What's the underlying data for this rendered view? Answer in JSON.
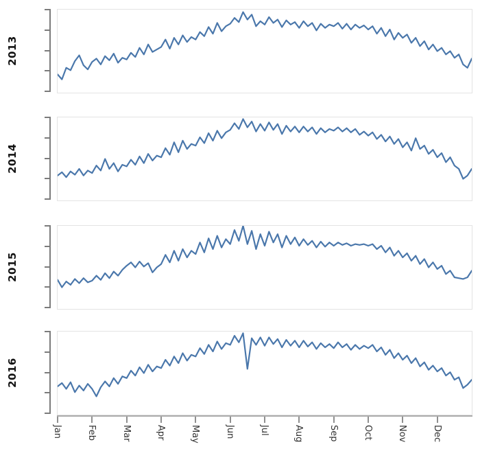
{
  "chart_data": {
    "type": "line",
    "layout": "faceted-small-multiples-shared-x",
    "title": "",
    "facet_labels": [
      "2013",
      "2014",
      "2015",
      "2016"
    ],
    "x_tick_labels": [
      "Jan",
      "Feb",
      "Mar",
      "Apr",
      "May",
      "Jun",
      "Jul",
      "Aug",
      "Sep",
      "Oct",
      "Nov",
      "Dec"
    ],
    "y_tick_count": 5,
    "y_tick_labels_visible": false,
    "value_scale": "normalized 0 (facet bottom) to 1 (facet top); y axis shows unlabeled ticks only",
    "series": [
      {
        "name": "2013",
        "values": [
          0.22,
          0.16,
          0.3,
          0.27,
          0.38,
          0.45,
          0.33,
          0.28,
          0.37,
          0.41,
          0.34,
          0.44,
          0.39,
          0.47,
          0.36,
          0.42,
          0.4,
          0.48,
          0.43,
          0.54,
          0.46,
          0.58,
          0.49,
          0.52,
          0.55,
          0.64,
          0.53,
          0.66,
          0.58,
          0.69,
          0.61,
          0.67,
          0.64,
          0.73,
          0.68,
          0.79,
          0.71,
          0.84,
          0.74,
          0.8,
          0.83,
          0.9,
          0.85,
          0.97,
          0.88,
          0.94,
          0.8,
          0.86,
          0.82,
          0.91,
          0.84,
          0.88,
          0.79,
          0.87,
          0.82,
          0.85,
          0.78,
          0.86,
          0.8,
          0.84,
          0.75,
          0.83,
          0.78,
          0.82,
          0.8,
          0.84,
          0.77,
          0.83,
          0.76,
          0.82,
          0.78,
          0.81,
          0.76,
          0.8,
          0.71,
          0.78,
          0.68,
          0.76,
          0.64,
          0.72,
          0.66,
          0.7,
          0.6,
          0.66,
          0.56,
          0.62,
          0.52,
          0.58,
          0.5,
          0.54,
          0.46,
          0.5,
          0.42,
          0.46,
          0.34,
          0.3,
          0.41
        ]
      },
      {
        "name": "2014",
        "values": [
          0.3,
          0.34,
          0.28,
          0.35,
          0.31,
          0.38,
          0.3,
          0.36,
          0.33,
          0.42,
          0.36,
          0.5,
          0.38,
          0.45,
          0.35,
          0.43,
          0.41,
          0.49,
          0.43,
          0.53,
          0.45,
          0.56,
          0.48,
          0.54,
          0.52,
          0.63,
          0.55,
          0.7,
          0.58,
          0.72,
          0.62,
          0.68,
          0.66,
          0.76,
          0.69,
          0.81,
          0.72,
          0.84,
          0.75,
          0.82,
          0.85,
          0.93,
          0.86,
          0.98,
          0.88,
          0.95,
          0.83,
          0.92,
          0.84,
          0.94,
          0.85,
          0.92,
          0.8,
          0.9,
          0.83,
          0.89,
          0.82,
          0.89,
          0.83,
          0.88,
          0.8,
          0.87,
          0.82,
          0.86,
          0.84,
          0.88,
          0.83,
          0.87,
          0.82,
          0.86,
          0.79,
          0.83,
          0.78,
          0.82,
          0.74,
          0.79,
          0.71,
          0.77,
          0.68,
          0.74,
          0.64,
          0.7,
          0.6,
          0.75,
          0.62,
          0.66,
          0.56,
          0.61,
          0.52,
          0.57,
          0.46,
          0.52,
          0.42,
          0.38,
          0.26,
          0.3,
          0.38
        ]
      },
      {
        "name": "2015",
        "values": [
          0.35,
          0.26,
          0.33,
          0.29,
          0.36,
          0.31,
          0.37,
          0.32,
          0.34,
          0.4,
          0.35,
          0.43,
          0.37,
          0.45,
          0.4,
          0.47,
          0.52,
          0.56,
          0.5,
          0.57,
          0.51,
          0.55,
          0.44,
          0.5,
          0.54,
          0.65,
          0.56,
          0.7,
          0.58,
          0.72,
          0.62,
          0.7,
          0.66,
          0.8,
          0.68,
          0.85,
          0.72,
          0.88,
          0.74,
          0.84,
          0.78,
          0.95,
          0.82,
          1.0,
          0.78,
          0.94,
          0.72,
          0.9,
          0.76,
          0.93,
          0.8,
          0.9,
          0.74,
          0.88,
          0.78,
          0.86,
          0.76,
          0.84,
          0.77,
          0.82,
          0.74,
          0.81,
          0.75,
          0.8,
          0.76,
          0.8,
          0.77,
          0.79,
          0.76,
          0.78,
          0.77,
          0.78,
          0.76,
          0.78,
          0.72,
          0.76,
          0.68,
          0.74,
          0.64,
          0.7,
          0.62,
          0.67,
          0.58,
          0.64,
          0.54,
          0.6,
          0.5,
          0.56,
          0.48,
          0.52,
          0.42,
          0.46,
          0.38,
          0.37,
          0.36,
          0.38,
          0.46
        ]
      },
      {
        "name": "2016",
        "values": [
          0.34,
          0.38,
          0.31,
          0.39,
          0.27,
          0.35,
          0.29,
          0.37,
          0.31,
          0.22,
          0.33,
          0.4,
          0.34,
          0.44,
          0.37,
          0.46,
          0.44,
          0.53,
          0.47,
          0.57,
          0.5,
          0.6,
          0.52,
          0.58,
          0.56,
          0.66,
          0.59,
          0.7,
          0.62,
          0.74,
          0.65,
          0.72,
          0.7,
          0.8,
          0.73,
          0.84,
          0.76,
          0.88,
          0.79,
          0.86,
          0.84,
          0.95,
          0.87,
          0.98,
          0.55,
          0.92,
          0.84,
          0.93,
          0.83,
          0.93,
          0.85,
          0.91,
          0.81,
          0.9,
          0.83,
          0.89,
          0.81,
          0.89,
          0.82,
          0.87,
          0.79,
          0.86,
          0.81,
          0.85,
          0.8,
          0.87,
          0.81,
          0.85,
          0.78,
          0.84,
          0.79,
          0.83,
          0.8,
          0.84,
          0.76,
          0.81,
          0.72,
          0.78,
          0.68,
          0.74,
          0.66,
          0.71,
          0.62,
          0.68,
          0.58,
          0.63,
          0.54,
          0.59,
          0.52,
          0.56,
          0.47,
          0.51,
          0.42,
          0.45,
          0.32,
          0.36,
          0.42
        ]
      }
    ],
    "style": {
      "line_color": "#4a77ab",
      "y_spine_color": "#7b7b7b",
      "x_axis_line_color": "#ababab",
      "x_tick_color": "#8f8f8f",
      "facet_border_color": "#e3e3e3",
      "year_label_color": "#141414",
      "month_label_color": "#333333"
    }
  }
}
